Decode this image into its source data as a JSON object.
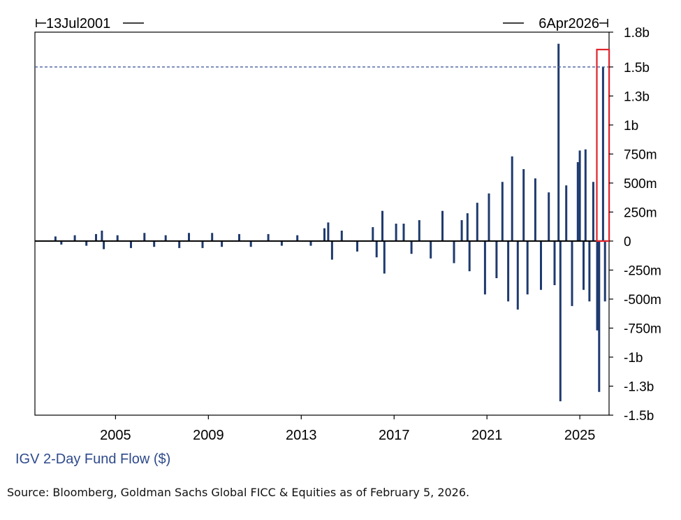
{
  "chart_data": {
    "type": "bar",
    "title": "",
    "xlabel": "",
    "ylabel": "",
    "series": [
      {
        "name": "IGV 2-Day Fund Flow ($)",
        "color": "#1f3a6e",
        "points": [
          [
            "2002-06",
            0.04
          ],
          [
            "2002-09",
            -0.03
          ],
          [
            "2003-04",
            0.05
          ],
          [
            "2003-10",
            -0.04
          ],
          [
            "2004-03",
            0.06
          ],
          [
            "2004-06",
            0.09
          ],
          [
            "2004-07",
            -0.07
          ],
          [
            "2005-02",
            0.05
          ],
          [
            "2005-09",
            -0.06
          ],
          [
            "2006-04",
            0.07
          ],
          [
            "2006-09",
            -0.05
          ],
          [
            "2007-03",
            0.05
          ],
          [
            "2007-10",
            -0.06
          ],
          [
            "2008-03",
            0.07
          ],
          [
            "2008-10",
            -0.06
          ],
          [
            "2009-03",
            0.07
          ],
          [
            "2009-08",
            -0.05
          ],
          [
            "2010-05",
            0.06
          ],
          [
            "2010-11",
            -0.05
          ],
          [
            "2011-08",
            0.06
          ],
          [
            "2012-03",
            -0.04
          ],
          [
            "2012-11",
            0.05
          ],
          [
            "2013-06",
            -0.04
          ],
          [
            "2014-01",
            0.11
          ],
          [
            "2014-03",
            0.16
          ],
          [
            "2014-05",
            -0.16
          ],
          [
            "2014-10",
            0.09
          ],
          [
            "2015-06",
            -0.09
          ],
          [
            "2016-02",
            0.12
          ],
          [
            "2016-04",
            -0.14
          ],
          [
            "2016-07",
            0.26
          ],
          [
            "2016-08",
            -0.28
          ],
          [
            "2017-02",
            0.15
          ],
          [
            "2017-06",
            0.15
          ],
          [
            "2017-10",
            -0.11
          ],
          [
            "2018-02",
            0.18
          ],
          [
            "2018-08",
            -0.15
          ],
          [
            "2019-02",
            0.26
          ],
          [
            "2019-08",
            -0.19
          ],
          [
            "2019-12",
            0.18
          ],
          [
            "2020-03",
            0.24
          ],
          [
            "2020-04",
            -0.26
          ],
          [
            "2020-08",
            0.33
          ],
          [
            "2020-12",
            -0.46
          ],
          [
            "2021-02",
            0.41
          ],
          [
            "2021-06",
            -0.32
          ],
          [
            "2021-09",
            0.51
          ],
          [
            "2021-12",
            -0.52
          ],
          [
            "2022-02",
            0.73
          ],
          [
            "2022-05",
            -0.59
          ],
          [
            "2022-08",
            0.62
          ],
          [
            "2022-10",
            -0.46
          ],
          [
            "2023-02",
            0.54
          ],
          [
            "2023-05",
            -0.42
          ],
          [
            "2023-09",
            0.42
          ],
          [
            "2023-12",
            -0.38
          ],
          [
            "2024-02",
            1.7
          ],
          [
            "2024-03",
            -1.38
          ],
          [
            "2024-06",
            0.48
          ],
          [
            "2024-09",
            -0.56
          ],
          [
            "2024-12",
            0.68
          ],
          [
            "2025-01",
            0.78
          ],
          [
            "2025-03",
            -0.42
          ],
          [
            "2025-04",
            0.79
          ],
          [
            "2025-06",
            -0.52
          ],
          [
            "2025-08",
            0.51
          ],
          [
            "2025-10",
            -0.77
          ],
          [
            "2025-11",
            -1.3
          ],
          [
            "2026-01",
            1.5
          ],
          [
            "2026-02",
            -0.52
          ]
        ]
      }
    ],
    "x_range": [
      "2001-07-13",
      "2026-04-06"
    ],
    "x_range_labels": [
      "13Jul2001",
      "6Apr2026"
    ],
    "x_ticks": [
      "2005",
      "2009",
      "2013",
      "2017",
      "2021",
      "2025"
    ],
    "y_unit": "billions of dollars",
    "ylim": [
      -1.5,
      1.8
    ],
    "y_ticks": [
      {
        "value": 1.8,
        "label": "1.8b"
      },
      {
        "value": 1.5,
        "label": "1.5b"
      },
      {
        "value": 1.25,
        "label": "1.3b"
      },
      {
        "value": 1.0,
        "label": "1b"
      },
      {
        "value": 0.75,
        "label": "750m"
      },
      {
        "value": 0.5,
        "label": "500m"
      },
      {
        "value": 0.25,
        "label": "250m"
      },
      {
        "value": 0.0,
        "label": "0"
      },
      {
        "value": -0.25,
        "label": "-250m"
      },
      {
        "value": -0.5,
        "label": "-500m"
      },
      {
        "value": -0.75,
        "label": "-750m"
      },
      {
        "value": -1.0,
        "label": "-1b"
      },
      {
        "value": -1.25,
        "label": "-1.3b"
      },
      {
        "value": -1.5,
        "label": "-1.5b"
      }
    ],
    "reference_line": {
      "value": 1.5,
      "style": "dashed"
    },
    "highlight": {
      "from": "2025-12",
      "to": "2026-02",
      "color": "#e0242c"
    },
    "legend_text": "IGV 2-Day Fund Flow ($)",
    "legend_position": "bottom-left",
    "grid": false
  },
  "source_text": "Source: Bloomberg, Goldman Sachs Global FICC & Equities as of February 5, 2026."
}
